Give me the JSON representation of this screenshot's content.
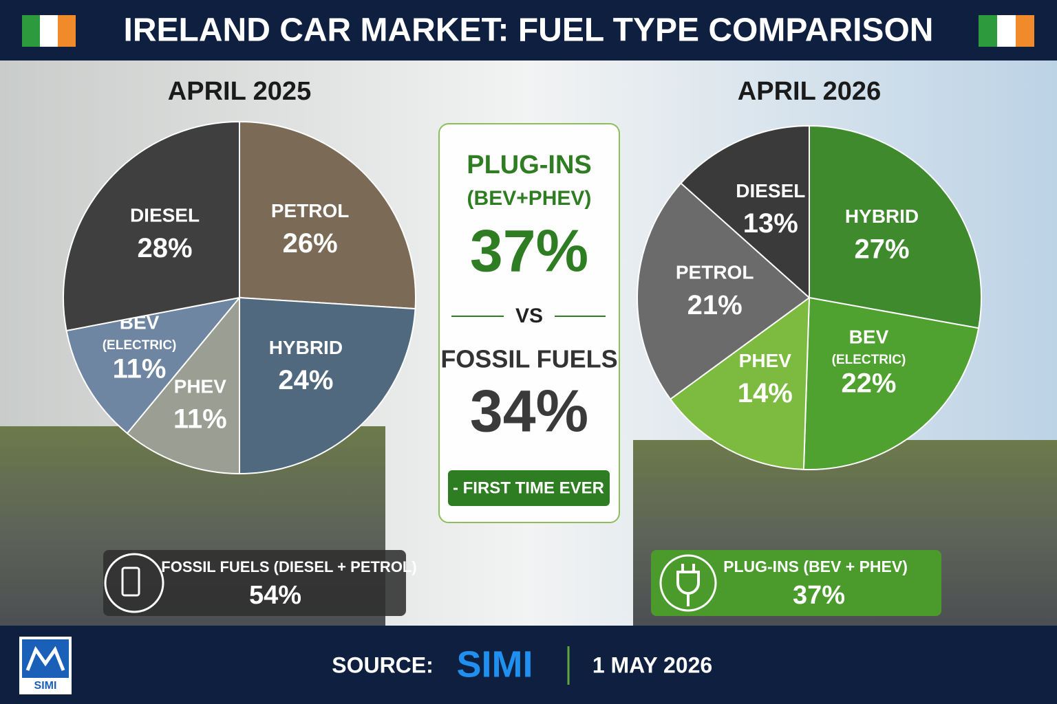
{
  "header": {
    "title": "IRELAND CAR MARKET: FUEL TYPE COMPARISON"
  },
  "chart_data": [
    {
      "type": "pie",
      "title": "APRIL 2025",
      "categories": [
        "PETROL",
        "HYBRID",
        "PHEV",
        "BEV",
        "DIESEL"
      ],
      "sublabels": [
        null,
        null,
        null,
        "(ELECTRIC)",
        null
      ],
      "values": [
        26,
        24,
        11,
        11,
        28
      ],
      "value_labels": [
        "26%",
        "24%",
        "11%",
        "11%",
        "28%"
      ],
      "colors": [
        "#7b6b56",
        "#51697e",
        "#9b9e92",
        "#6e86a2",
        "#3f3f3f"
      ]
    },
    {
      "type": "pie",
      "title": "APRIL 2026",
      "categories": [
        "HYBRID",
        "BEV",
        "PHEV",
        "PETROL",
        "DIESEL"
      ],
      "sublabels": [
        null,
        "(ELECTRIC)",
        null,
        null,
        null
      ],
      "values": [
        27,
        22,
        14,
        21,
        13
      ],
      "value_labels": [
        "27%",
        "22%",
        "14%",
        "21%",
        "13%"
      ],
      "colors": [
        "#3e8a2d",
        "#4fa130",
        "#7dbb40",
        "#6b6b6b",
        "#3a3a3a"
      ]
    }
  ],
  "center": {
    "plugins_label": "PLUG-INS",
    "plugins_sub": "(BEV+PHEV)",
    "plugins_value": "37%",
    "vs": "VS",
    "fossil_label": "FOSSIL FUELS",
    "fossil_value": "34%",
    "badge": "- FIRST TIME EVER"
  },
  "left_box": {
    "label": "FOSSIL FUELS (DIESEL + PETROL)",
    "value": "54%"
  },
  "right_box": {
    "label": "PLUG-INS (BEV + PHEV)",
    "value": "37%"
  },
  "footer": {
    "source_label": "SOURCE:",
    "source": "SIMI",
    "date": "1 MAY 2026",
    "logo": "SIMI"
  }
}
